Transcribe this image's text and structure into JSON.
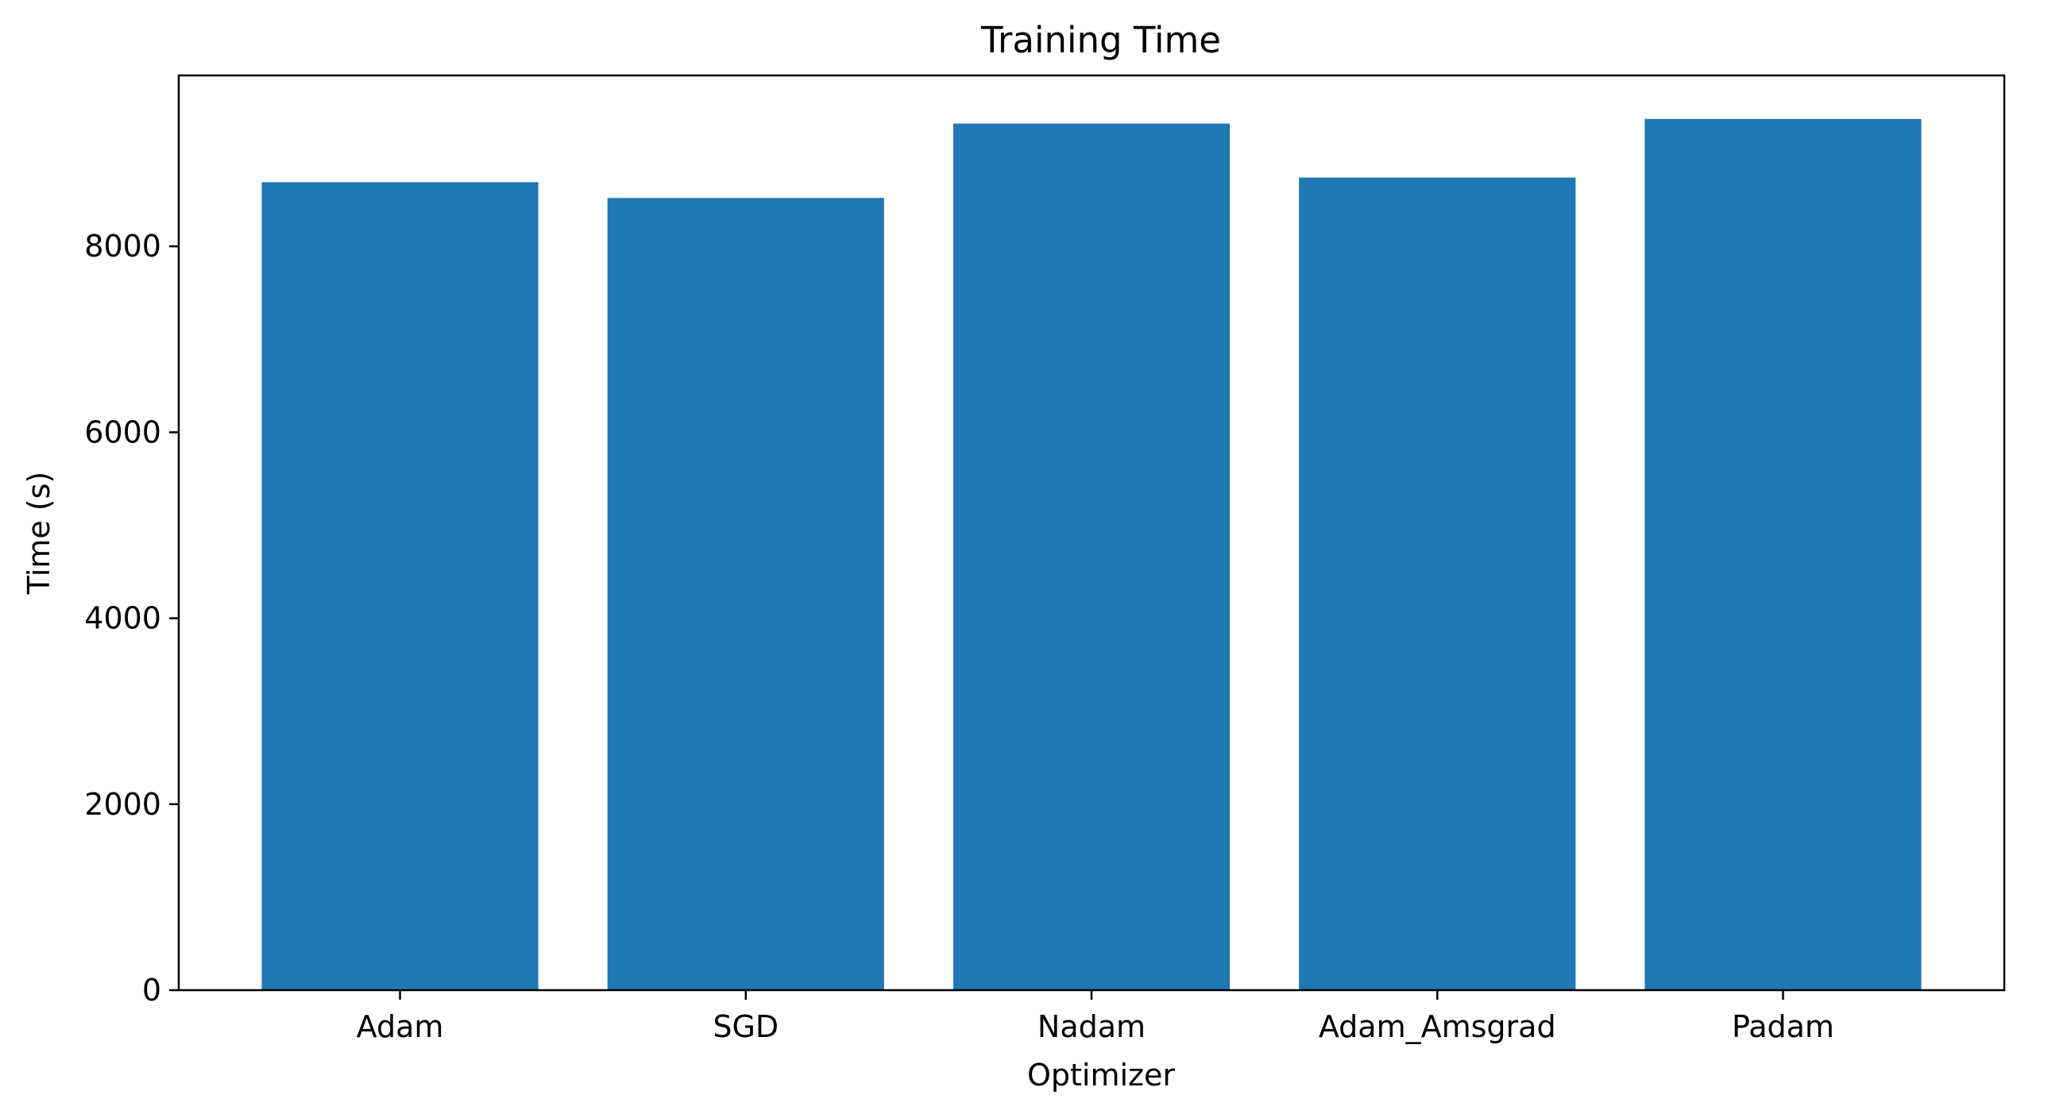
{
  "chart_data": {
    "type": "bar",
    "title": "Training Time",
    "xlabel": "Optimizer",
    "ylabel": "Time (s)",
    "categories": [
      "Adam",
      "SGD",
      "Nadam",
      "Adam_Amsgrad",
      "Padam"
    ],
    "values": [
      8690,
      8520,
      9320,
      8740,
      9370
    ],
    "ylim": [
      0,
      9838
    ],
    "yticks": [
      "0",
      "2000",
      "4000",
      "6000",
      "8000"
    ],
    "ytick_values": [
      0,
      2000,
      4000,
      6000,
      8000
    ],
    "bar_color": "#1f77b4",
    "grid": false,
    "legend": "none"
  }
}
